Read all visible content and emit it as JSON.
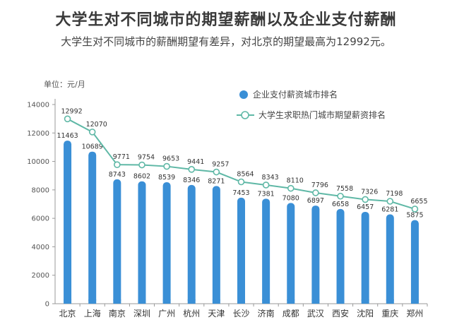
{
  "page": {
    "title": "大学生对不同城市的期望薪酬以及企业支付薪酬",
    "subtitle": "大学生对不同城市的薪酬期望有差异，对北京的期望最高为12992元。"
  },
  "chart_data": {
    "type": "bar",
    "title": "大学生对不同城市的期望薪酬以及企业支付薪酬",
    "subtitle": "大学生对不同城市的薪酬期望有差异，对北京的期望最高为12992元。",
    "unit_label": "单位：元/月",
    "categories": [
      "北京",
      "上海",
      "南京",
      "深圳",
      "广州",
      "杭州",
      "天津",
      "长沙",
      "济南",
      "成都",
      "武汉",
      "西安",
      "沈阳",
      "重庆",
      "郑州"
    ],
    "series": [
      {
        "name": "企业支付薪资城市排名",
        "kind": "bar",
        "color": "#3a8fd6",
        "values": [
          11463,
          10689,
          8743,
          8602,
          8539,
          8346,
          8271,
          7453,
          7381,
          7080,
          6897,
          6658,
          6457,
          6281,
          5875
        ]
      },
      {
        "name": "大学生求职热门城市期望薪资排名",
        "kind": "line",
        "color": "#5fb8a6",
        "values": [
          12992,
          12070,
          9771,
          9754,
          9653,
          9441,
          9257,
          8564,
          8343,
          8110,
          7796,
          7558,
          7326,
          7198,
          6655
        ]
      }
    ],
    "yticks": [
      0,
      2000,
      4000,
      6000,
      8000,
      10000,
      12000,
      14000
    ],
    "ylim": [
      0,
      14000
    ],
    "grid": false,
    "legend_position": "top-right"
  }
}
